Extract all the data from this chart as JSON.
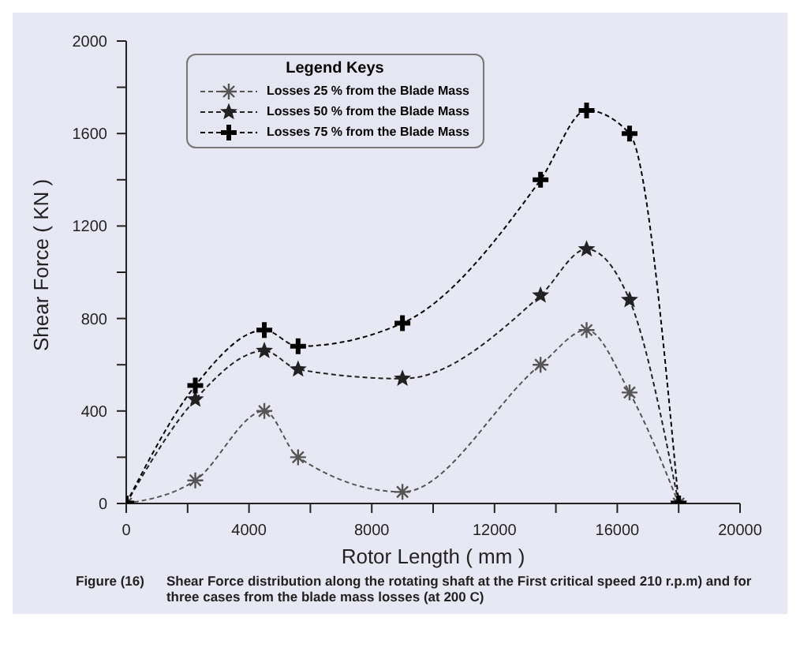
{
  "chart_data": {
    "type": "line",
    "xlabel": "Rotor Length ( mm )",
    "ylabel": "Shear Force ( KN )",
    "legend_title": "Legend Keys",
    "x": [
      0,
      2250,
      4500,
      5600,
      9000,
      13500,
      15000,
      16400,
      18000
    ],
    "series": [
      {
        "name": "Losses 25 % from the Blade Mass",
        "color": "#555555",
        "marker": "cross",
        "values": [
          0,
          100,
          400,
          200,
          50,
          600,
          750,
          480,
          0
        ]
      },
      {
        "name": "Losses 50 % from the Blade Mass",
        "color": "#222222",
        "marker": "star",
        "values": [
          0,
          450,
          660,
          580,
          540,
          900,
          1100,
          880,
          0
        ]
      },
      {
        "name": "Losses 75 % from the Blade Mass",
        "color": "#000000",
        "marker": "cross",
        "values": [
          0,
          510,
          750,
          680,
          780,
          1400,
          1700,
          1600,
          0
        ]
      }
    ],
    "xlim": [
      0,
      20000
    ],
    "xticks": [
      0,
      {
        "value": 2000,
        "label": null
      },
      4000,
      {
        "value": 6000,
        "label": null
      },
      8000,
      {
        "value": 10000,
        "label": null
      },
      12000,
      {
        "value": 14000,
        "label": null
      },
      16000,
      {
        "value": 18000,
        "label": null
      },
      20000
    ],
    "ylim": [
      0,
      2000
    ],
    "yticks": [
      0,
      {
        "value": 200,
        "label": null
      },
      400,
      {
        "value": 600,
        "label": null
      },
      800,
      {
        "value": 1000,
        "label": null
      },
      1200,
      {
        "value": 1400,
        "label": null
      },
      1600,
      {
        "value": 1800,
        "label": null
      },
      2000
    ],
    "grid": false,
    "legend": "top left",
    "line_style": "dashed",
    "annotations": [
      "Figure (16)",
      "Shear Force distribution along the rotating shaft at the First critical speed 210 r.p.m) and for three cases from the blade mass losses (at 200 C)"
    ]
  }
}
